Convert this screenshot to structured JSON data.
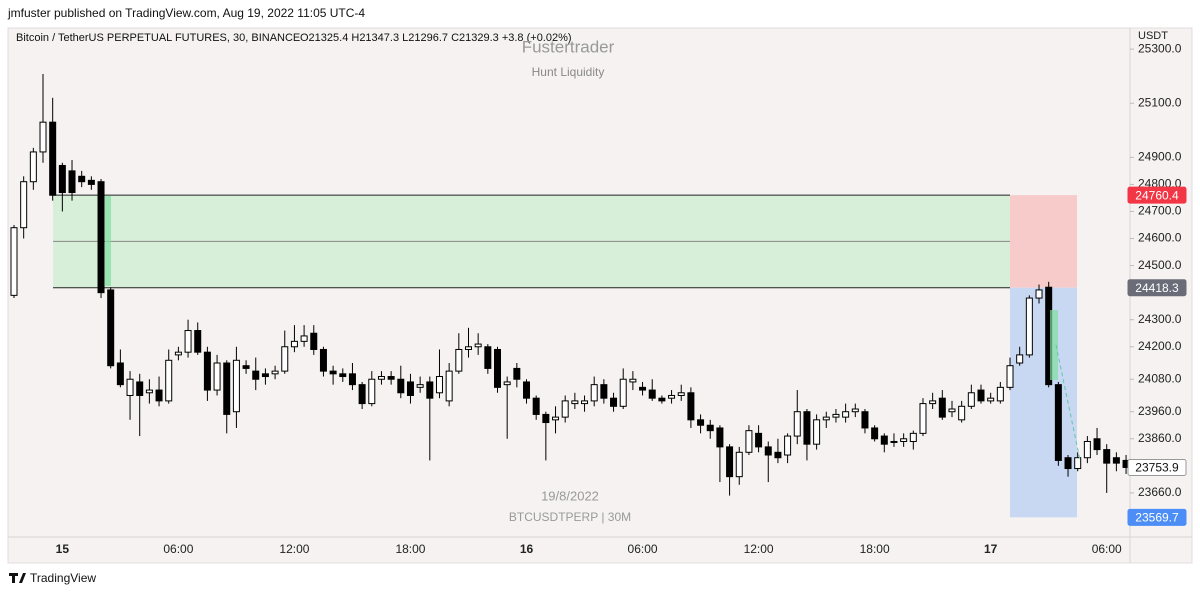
{
  "header": "jmfuster published on TradingView.com, Aug 19, 2022 11:05 UTC-4",
  "footer": "TradingView",
  "chart_data": {
    "type": "candlestick",
    "title": "Fustertrader",
    "subtitle": "Hunt Liquidity",
    "symbol": "Bitcoin / TetherUS PERPETUAL FUTURES, 30, BINANCE",
    "readout": "O21325.4  H21347.3  L21296.7  C21329.3  +3.8 (+0.02%)",
    "y_axis_label": "USDT",
    "date_label": "19/8/2022",
    "watermark": "BTCUSDTPERP | 30M",
    "up_color": "#ffffff",
    "down_color": "#000000",
    "categories": [
      null,
      null,
      null,
      null,
      null,
      "15",
      null,
      null,
      null,
      null,
      null,
      null,
      null,
      null,
      null,
      null,
      null,
      "06:00",
      null,
      null,
      null,
      null,
      null,
      null,
      null,
      null,
      null,
      null,
      null,
      "12:00",
      null,
      null,
      null,
      null,
      null,
      null,
      null,
      null,
      null,
      null,
      null,
      "18:00",
      null,
      null,
      null,
      null,
      null,
      null,
      null,
      null,
      null,
      null,
      null,
      "16",
      null,
      null,
      null,
      null,
      null,
      null,
      null,
      null,
      null,
      null,
      null,
      "06:00",
      null,
      null,
      null,
      null,
      null,
      null,
      null,
      null,
      null,
      null,
      null,
      "12:00",
      null,
      null,
      null,
      null,
      null,
      null,
      null,
      null,
      null,
      null,
      null,
      "18:00",
      null,
      null,
      null,
      null,
      null,
      null,
      null,
      null,
      null,
      null,
      null,
      "17",
      null,
      null,
      null,
      null,
      null,
      null,
      null,
      null,
      null,
      null,
      null,
      "06:00",
      null,
      null
    ],
    "open": [
      24390,
      24640,
      24810,
      24920,
      25030,
      24870,
      24850,
      24830,
      24815,
      24810,
      24410,
      24140,
      24020,
      24070,
      24030,
      24040,
      24000,
      24170,
      24180,
      24260,
      24180,
      24040,
      24140,
      23960,
      24130,
      24110,
      24100,
      24100,
      24110,
      24200,
      24220,
      24250,
      24190,
      24110,
      24100,
      24100,
      24060,
      23990,
      24080,
      24090,
      24080,
      24070,
      24050,
      24070,
      24030,
      24000,
      24110,
      24190,
      24200,
      24200,
      24190,
      24060,
      24120,
      24070,
      24010,
      23950,
      23930,
      23940,
      23990,
      23990,
      24000,
      24060,
      24010,
      23980,
      24070,
      24050,
      24040,
      24010,
      24010,
      24020,
      24030,
      23930,
      23910,
      23900,
      23830,
      23720,
      23810,
      23880,
      23830,
      23810,
      23800,
      23870,
      23960,
      23840,
      23930,
      23940,
      23940,
      23960,
      23960,
      23900,
      23870,
      23850,
      23850,
      23850,
      23880,
      23990,
      24010,
      23960,
      23930,
      23980,
      24040,
      24000,
      24000,
      24050,
      24140,
      24170,
      24380,
      24420,
      24060,
      23790,
      23750,
      23790,
      23860,
      23820,
      23790,
      23780
    ],
    "high": [
      24650,
      24830,
      24935,
      25208,
      25120,
      24880,
      24890,
      24850,
      24830,
      24820,
      24420,
      24190,
      24110,
      24100,
      24080,
      24090,
      24190,
      24200,
      24300,
      24290,
      24200,
      24170,
      24150,
      24200,
      24150,
      24160,
      24120,
      24130,
      24260,
      24280,
      24280,
      24280,
      24200,
      24130,
      24120,
      24140,
      24070,
      24110,
      24110,
      24110,
      24130,
      24100,
      24090,
      24090,
      24190,
      24140,
      24250,
      24270,
      24250,
      24210,
      24200,
      24090,
      24140,
      24080,
      24020,
      23960,
      23980,
      24020,
      24030,
      24020,
      24090,
      24080,
      24030,
      24120,
      24110,
      24070,
      24080,
      24020,
      24040,
      24060,
      24050,
      23950,
      23930,
      23910,
      23840,
      23830,
      23910,
      23910,
      23850,
      23860,
      23880,
      24040,
      23970,
      23950,
      23960,
      23970,
      23990,
      23990,
      23970,
      23910,
      23880,
      23880,
      23880,
      23890,
      24010,
      24030,
      24040,
      24000,
      24000,
      24060,
      24060,
      24030,
      24070,
      24160,
      24200,
      24390,
      24430,
      24440,
      24070,
      23800,
      23810,
      23870,
      23900,
      23840,
      23810,
      23800
    ],
    "low": [
      24380,
      24600,
      24780,
      24880,
      24740,
      24700,
      24740,
      24790,
      24780,
      24380,
      24120,
      24050,
      23930,
      23870,
      23990,
      23980,
      23990,
      24150,
      24160,
      24170,
      24000,
      24020,
      23880,
      23900,
      24100,
      24040,
      24060,
      24080,
      24100,
      24180,
      24200,
      24170,
      24090,
      24060,
      24070,
      24040,
      23970,
      23980,
      24060,
      24060,
      24010,
      23990,
      24030,
      23780,
      24010,
      23980,
      24100,
      24160,
      24170,
      24100,
      24030,
      23860,
      24050,
      23990,
      23930,
      23780,
      23880,
      23920,
      23970,
      23960,
      23980,
      23990,
      23960,
      23970,
      24040,
      24020,
      24000,
      23990,
      23990,
      24000,
      23900,
      23880,
      23860,
      23700,
      23650,
      23690,
      23800,
      23810,
      23700,
      23770,
      23770,
      23840,
      23780,
      23820,
      23900,
      23920,
      23920,
      23940,
      23880,
      23850,
      23810,
      23830,
      23830,
      23820,
      23870,
      23970,
      23930,
      23940,
      23920,
      23970,
      23990,
      23990,
      23990,
      24040,
      24130,
      24160,
      24360,
      24050,
      23760,
      23720,
      23740,
      23770,
      23800,
      23660,
      23740,
      23730
    ],
    "close": [
      24640,
      24810,
      24920,
      25030,
      24760,
      24770,
      24770,
      24810,
      24800,
      24400,
      24130,
      24060,
      24080,
      24020,
      24040,
      24000,
      24150,
      24180,
      24260,
      24180,
      24040,
      24140,
      23950,
      24150,
      24120,
      24080,
      24090,
      24110,
      24200,
      24220,
      24240,
      24190,
      24110,
      24100,
      24090,
      24060,
      23990,
      24080,
      24090,
      24080,
      24030,
      24020,
      24060,
      24010,
      24090,
      24110,
      24190,
      24200,
      24210,
      24120,
      24050,
      24070,
      24080,
      24010,
      23950,
      23920,
      23940,
      24000,
      24000,
      24000,
      24060,
      24010,
      23980,
      24080,
      24080,
      24040,
      24010,
      24000,
      24020,
      24030,
      23930,
      23910,
      23890,
      23830,
      23720,
      23810,
      23890,
      23830,
      23800,
      23790,
      23870,
      23960,
      23840,
      23930,
      23940,
      23950,
      23960,
      23970,
      23900,
      23860,
      23840,
      23850,
      23860,
      23880,
      23990,
      24000,
      23940,
      23970,
      23980,
      24030,
      24000,
      24010,
      24050,
      24130,
      24170,
      24380,
      24410,
      24060,
      23780,
      23750,
      23790,
      23850,
      23820,
      23770,
      23770,
      23754
    ],
    "ylim": [
      23497,
      25378
    ],
    "yticks": [
      {
        "value": 25300,
        "label": "25300.0"
      },
      {
        "value": 25100,
        "label": "25100.0"
      },
      {
        "value": 24900,
        "label": "24900.0"
      },
      {
        "value": 24800,
        "label": "24800.0"
      },
      {
        "value": 24700,
        "label": "24700.0"
      },
      {
        "value": 24600,
        "label": "24600.0"
      },
      {
        "value": 24500,
        "label": "24500.0"
      },
      {
        "value": 24300,
        "label": "24300.0"
      },
      {
        "value": 24200,
        "label": "24200.0"
      },
      {
        "value": 24080,
        "label": "24080.0"
      },
      {
        "value": 23960,
        "label": "23960.0"
      },
      {
        "value": 23860,
        "label": "23860.0"
      },
      {
        "value": 23660,
        "label": "23660.0"
      }
    ],
    "price_labels": [
      {
        "value": 24760.4,
        "color": "#f23645"
      },
      {
        "value": 24418.3,
        "color": "#6a6d78"
      },
      {
        "value": 23753.9,
        "color": "#ffffff"
      },
      {
        "value": 23569.7,
        "color": "#4c8df6"
      }
    ]
  }
}
